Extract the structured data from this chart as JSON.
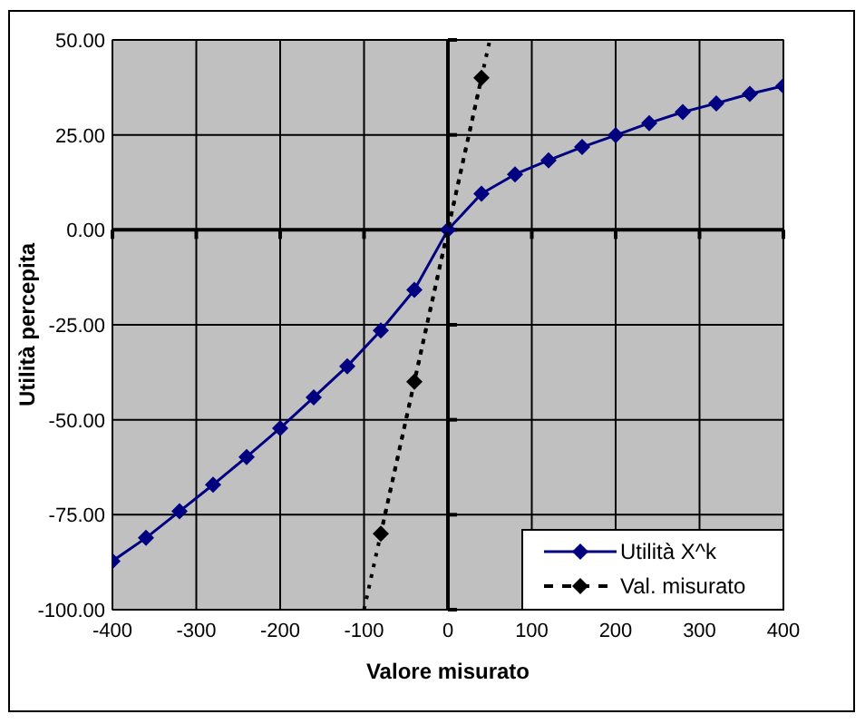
{
  "chart_data": {
    "type": "line",
    "xlabel": "Valore misurato",
    "ylabel": "Utilità percepita",
    "xlim": [
      -400,
      400
    ],
    "ylim": [
      -100,
      50
    ],
    "xticks": [
      -400,
      -300,
      -200,
      -100,
      0,
      100,
      200,
      300,
      400
    ],
    "yticks": [
      {
        "value": -100,
        "label": "-100.00"
      },
      {
        "value": -75,
        "label": "-75.00"
      },
      {
        "value": -50,
        "label": "-50.00"
      },
      {
        "value": -25,
        "label": "-25.00"
      },
      {
        "value": 0,
        "label": "0.00"
      },
      {
        "value": 25,
        "label": "25.00"
      },
      {
        "value": 50,
        "label": "50.00"
      }
    ],
    "grid": true,
    "legend": "bottom right",
    "series": [
      {
        "name": "Utilità X^k",
        "color": "#000080",
        "marker": "diamond",
        "line_style": "solid",
        "x": [
          -400,
          -360,
          -320,
          -280,
          -240,
          -200,
          -160,
          -120,
          -80,
          -40,
          0,
          40,
          80,
          120,
          160,
          200,
          240,
          280,
          320,
          360,
          400
        ],
        "values": [
          -87.2,
          -81.1,
          -74.1,
          -67.1,
          -59.8,
          -52.2,
          -44.1,
          -35.9,
          -26.5,
          -15.8,
          0,
          9.5,
          14.6,
          18.3,
          21.8,
          24.9,
          28.1,
          31.0,
          33.3,
          35.8,
          37.9
        ]
      },
      {
        "name": "Val. misurato",
        "color": "#000000",
        "marker": "diamond",
        "line_style": "dotted",
        "x": [
          -80,
          -40,
          40
        ],
        "values": [
          -80,
          -40,
          40
        ]
      },
      {
        "type": "line",
        "color": "#000000",
        "marker": "none",
        "line_style": "dotted",
        "x": [
          -100,
          50
        ],
        "values": [
          -100,
          50
        ]
      }
    ]
  }
}
